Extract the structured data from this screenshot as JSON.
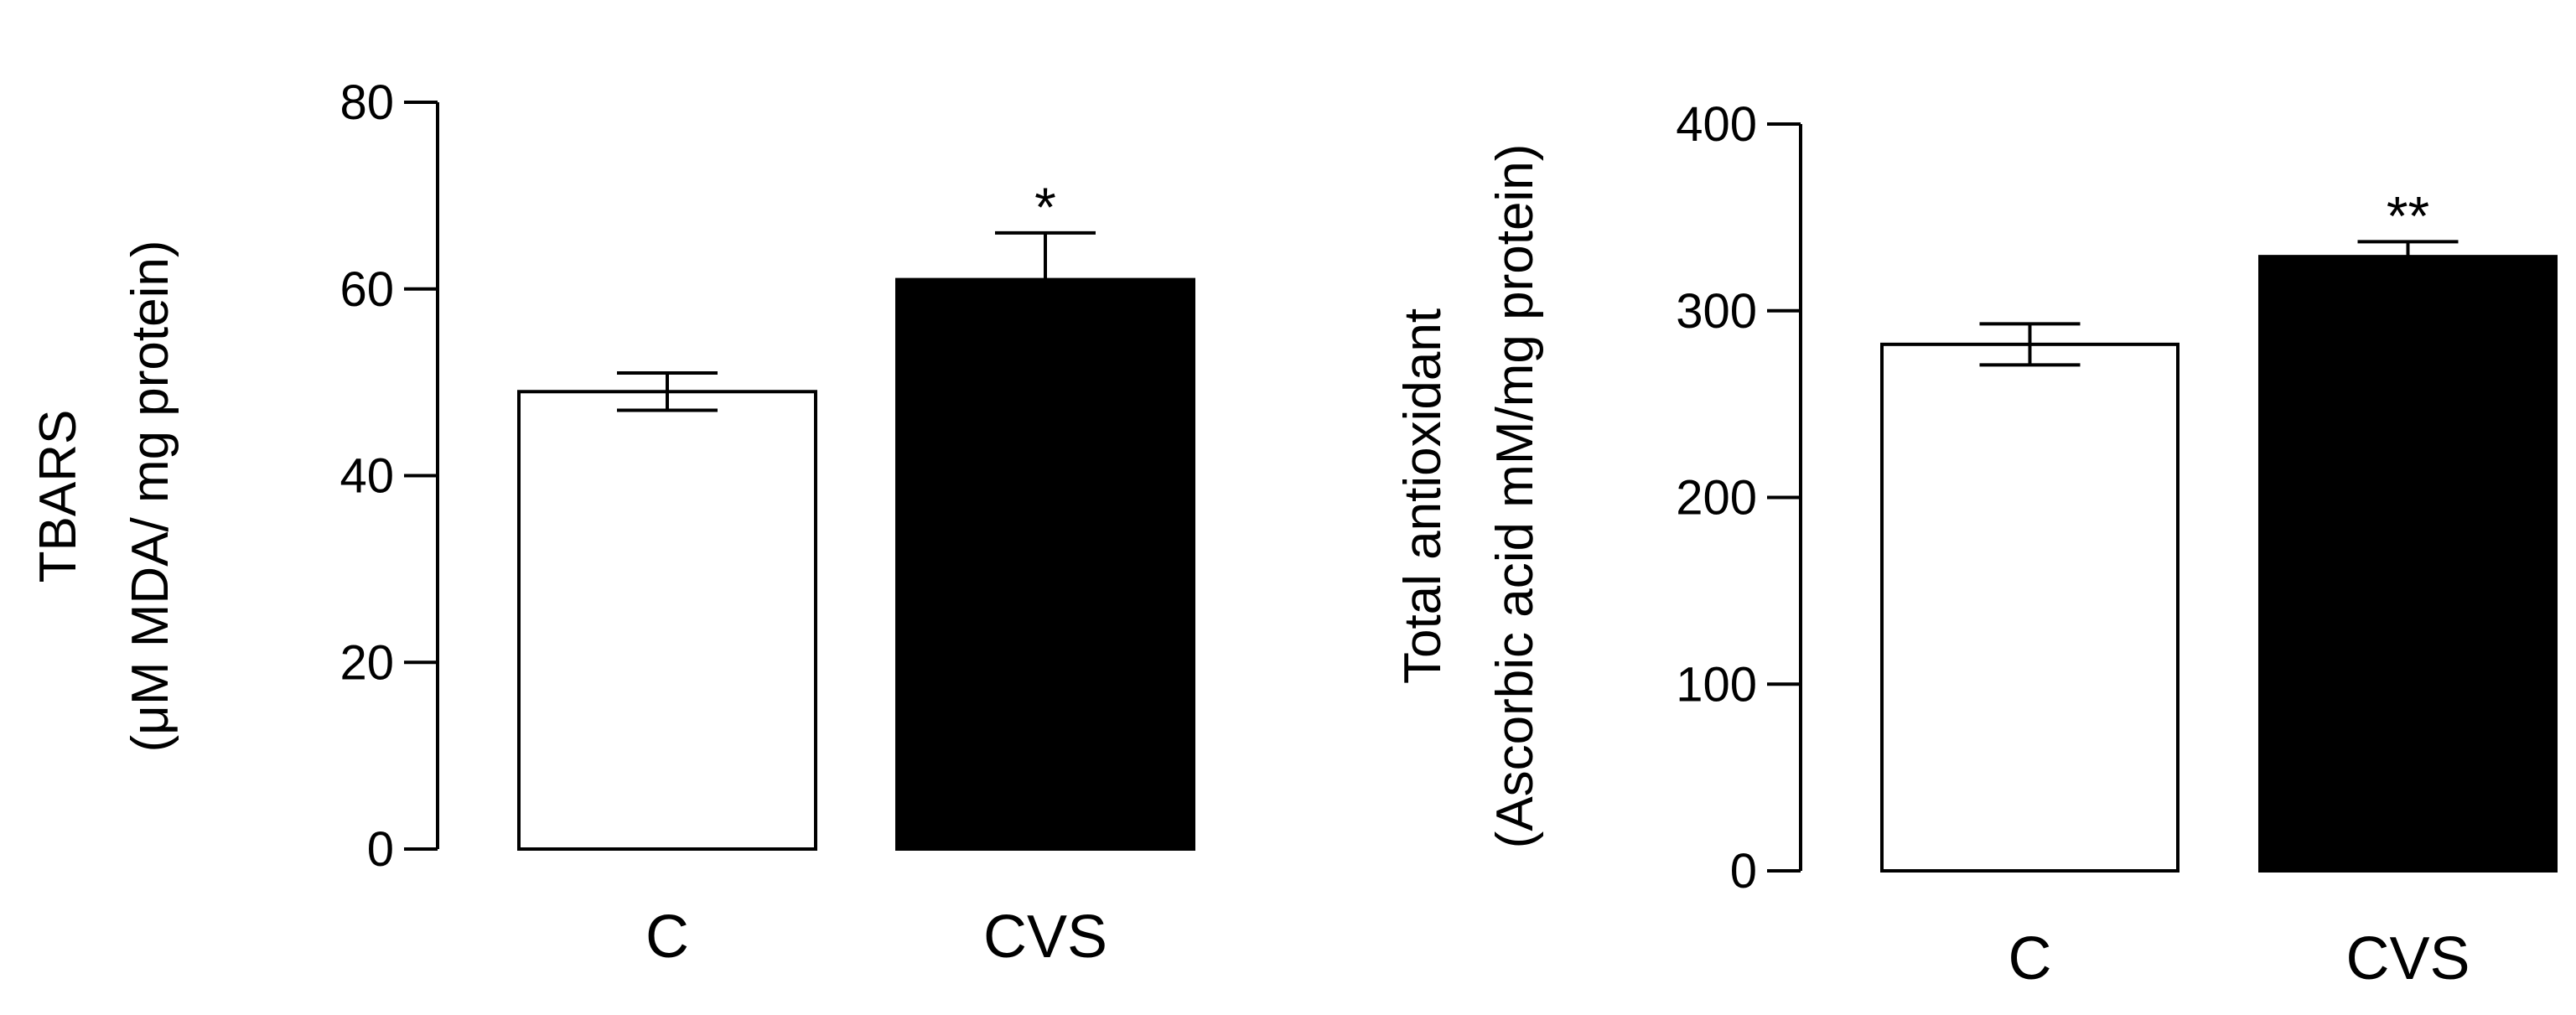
{
  "chart_data": [
    {
      "type": "bar",
      "categories": [
        "C",
        "CVS"
      ],
      "values": [
        49,
        61
      ],
      "errors": [
        2,
        5
      ],
      "significance": [
        "",
        "*"
      ],
      "bar_fills": [
        "#ffffff",
        "#000000"
      ],
      "title": "",
      "xlabel": "",
      "ylabel_line1": "TBARS",
      "ylabel_line2": "(μM MDA/ mg protein)",
      "ylim": [
        0,
        80
      ],
      "yticks": [
        0,
        20,
        40,
        60,
        80
      ],
      "grid": false,
      "legend": "none"
    },
    {
      "type": "bar",
      "categories": [
        "C",
        "CVS"
      ],
      "values": [
        282,
        329
      ],
      "errors": [
        11,
        8
      ],
      "significance": [
        "",
        "**"
      ],
      "bar_fills": [
        "#ffffff",
        "#000000"
      ],
      "title": "",
      "xlabel": "",
      "ylabel_line1": "Total antioxidant",
      "ylabel_line2": "(Ascorbic acid mM/mg protein)",
      "ylim": [
        0,
        400
      ],
      "yticks": [
        0,
        100,
        200,
        300,
        400
      ],
      "grid": false,
      "legend": "none"
    }
  ]
}
